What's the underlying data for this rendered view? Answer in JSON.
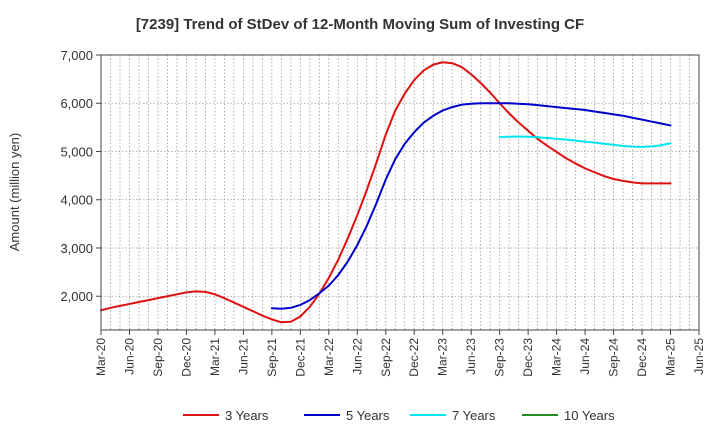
{
  "chart_data": {
    "type": "line",
    "title": "[7239]  Trend of StDev of 12-Month Moving Sum of Investing CF",
    "xlabel": "",
    "ylabel": "Amount (million yen)",
    "ylim": [
      1300,
      7000
    ],
    "yticks": [
      2000,
      3000,
      4000,
      5000,
      6000,
      7000
    ],
    "ytick_labels": [
      "2,000",
      "3,000",
      "4,000",
      "5,000",
      "6,000",
      "7,000"
    ],
    "x_start": "Mar-20",
    "x_end": "Jun-25",
    "xtick_labels": [
      "Mar-20",
      "Jun-20",
      "Sep-20",
      "Dec-20",
      "Mar-21",
      "Jun-21",
      "Sep-21",
      "Dec-21",
      "Mar-22",
      "Jun-22",
      "Sep-22",
      "Dec-22",
      "Mar-23",
      "Jun-23",
      "Sep-23",
      "Dec-23",
      "Mar-24",
      "Jun-24",
      "Sep-24",
      "Dec-24",
      "Mar-25",
      "Jun-25"
    ],
    "grid": true,
    "legend_position": "bottom",
    "series": [
      {
        "name": "3 Years",
        "color": "#dd1111",
        "points": [
          [
            "Mar-20",
            1710
          ],
          [
            "Apr-20",
            1760
          ],
          [
            "May-20",
            1800
          ],
          [
            "Jun-20",
            1840
          ],
          [
            "Jul-20",
            1880
          ],
          [
            "Aug-20",
            1920
          ],
          [
            "Sep-20",
            1960
          ],
          [
            "Oct-20",
            2000
          ],
          [
            "Nov-20",
            2040
          ],
          [
            "Dec-20",
            2080
          ],
          [
            "Jan-21",
            2100
          ],
          [
            "Feb-21",
            2090
          ],
          [
            "Mar-21",
            2040
          ],
          [
            "Apr-21",
            1960
          ],
          [
            "May-21",
            1870
          ],
          [
            "Jun-21",
            1780
          ],
          [
            "Jul-21",
            1690
          ],
          [
            "Aug-21",
            1600
          ],
          [
            "Sep-21",
            1520
          ],
          [
            "Oct-21",
            1460
          ],
          [
            "Nov-21",
            1470
          ],
          [
            "Dec-21",
            1580
          ],
          [
            "Jan-22",
            1780
          ],
          [
            "Feb-22",
            2050
          ],
          [
            "Mar-22",
            2380
          ],
          [
            "Apr-22",
            2760
          ],
          [
            "May-22",
            3200
          ],
          [
            "Jun-22",
            3680
          ],
          [
            "Jul-22",
            4200
          ],
          [
            "Aug-22",
            4760
          ],
          [
            "Sep-22",
            5350
          ],
          [
            "Oct-22",
            5850
          ],
          [
            "Nov-22",
            6200
          ],
          [
            "Dec-22",
            6480
          ],
          [
            "Jan-23",
            6680
          ],
          [
            "Feb-23",
            6800
          ],
          [
            "Mar-23",
            6850
          ],
          [
            "Apr-23",
            6830
          ],
          [
            "May-23",
            6750
          ],
          [
            "Jun-23",
            6600
          ],
          [
            "Jul-23",
            6420
          ],
          [
            "Aug-23",
            6220
          ],
          [
            "Sep-23",
            6000
          ],
          [
            "Oct-23",
            5790
          ],
          [
            "Nov-23",
            5600
          ],
          [
            "Dec-23",
            5430
          ],
          [
            "Jan-24",
            5260
          ],
          [
            "Feb-24",
            5120
          ],
          [
            "Mar-24",
            4990
          ],
          [
            "Apr-24",
            4860
          ],
          [
            "May-24",
            4750
          ],
          [
            "Jun-24",
            4650
          ],
          [
            "Jul-24",
            4570
          ],
          [
            "Aug-24",
            4490
          ],
          [
            "Sep-24",
            4430
          ],
          [
            "Oct-24",
            4390
          ],
          [
            "Nov-24",
            4360
          ],
          [
            "Dec-24",
            4340
          ],
          [
            "Jan-25",
            4340
          ],
          [
            "Feb-25",
            4340
          ],
          [
            "Mar-25",
            4340
          ]
        ]
      },
      {
        "name": "5 Years",
        "color": "#0000cc",
        "points": [
          [
            "Sep-21",
            1750
          ],
          [
            "Oct-21",
            1740
          ],
          [
            "Nov-21",
            1760
          ],
          [
            "Dec-21",
            1820
          ],
          [
            "Jan-22",
            1920
          ],
          [
            "Feb-22",
            2060
          ],
          [
            "Mar-22",
            2220
          ],
          [
            "Apr-22",
            2440
          ],
          [
            "May-22",
            2720
          ],
          [
            "Jun-22",
            3060
          ],
          [
            "Jul-22",
            3460
          ],
          [
            "Aug-22",
            3920
          ],
          [
            "Sep-22",
            4420
          ],
          [
            "Oct-22",
            4840
          ],
          [
            "Nov-22",
            5160
          ],
          [
            "Dec-22",
            5400
          ],
          [
            "Jan-23",
            5600
          ],
          [
            "Feb-23",
            5740
          ],
          [
            "Mar-23",
            5850
          ],
          [
            "Apr-23",
            5920
          ],
          [
            "May-23",
            5970
          ],
          [
            "Jun-23",
            5990
          ],
          [
            "Jul-23",
            6000
          ],
          [
            "Aug-23",
            6000
          ],
          [
            "Sep-23",
            6000
          ],
          [
            "Oct-23",
            6000
          ],
          [
            "Nov-23",
            5990
          ],
          [
            "Dec-23",
            5980
          ],
          [
            "Jan-24",
            5960
          ],
          [
            "Feb-24",
            5940
          ],
          [
            "Mar-24",
            5920
          ],
          [
            "Apr-24",
            5900
          ],
          [
            "May-24",
            5880
          ],
          [
            "Jun-24",
            5860
          ],
          [
            "Jul-24",
            5830
          ],
          [
            "Aug-24",
            5800
          ],
          [
            "Sep-24",
            5770
          ],
          [
            "Oct-24",
            5740
          ],
          [
            "Nov-24",
            5700
          ],
          [
            "Dec-24",
            5660
          ],
          [
            "Jan-25",
            5620
          ],
          [
            "Feb-25",
            5580
          ],
          [
            "Mar-25",
            5540
          ]
        ]
      },
      {
        "name": "7 Years",
        "color": "#00e5ee",
        "points": [
          [
            "Sep-23",
            5300
          ],
          [
            "Oct-23",
            5305
          ],
          [
            "Nov-23",
            5310
          ],
          [
            "Dec-23",
            5305
          ],
          [
            "Jan-24",
            5295
          ],
          [
            "Feb-24",
            5280
          ],
          [
            "Mar-24",
            5265
          ],
          [
            "Apr-24",
            5245
          ],
          [
            "May-24",
            5225
          ],
          [
            "Jun-24",
            5205
          ],
          [
            "Jul-24",
            5185
          ],
          [
            "Aug-24",
            5160
          ],
          [
            "Sep-24",
            5140
          ],
          [
            "Oct-24",
            5115
          ],
          [
            "Nov-24",
            5100
          ],
          [
            "Dec-24",
            5095
          ],
          [
            "Jan-25",
            5105
          ],
          [
            "Feb-25",
            5130
          ],
          [
            "Mar-25",
            5170
          ]
        ]
      },
      {
        "name": "10 Years",
        "color": "#228b22",
        "points": []
      }
    ]
  }
}
